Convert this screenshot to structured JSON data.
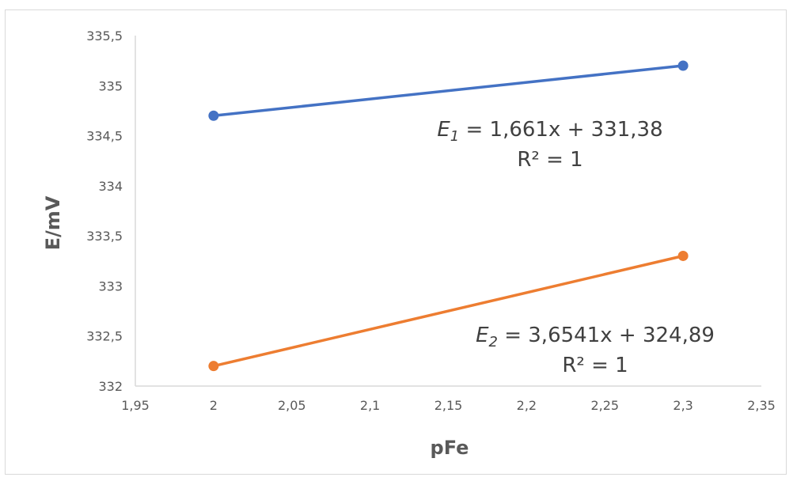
{
  "chart_data": {
    "type": "scatter",
    "title": "",
    "xlabel": "pFe",
    "ylabel": "E/mV",
    "xlim": [
      1.95,
      2.35
    ],
    "ylim": [
      332,
      335.5
    ],
    "x_ticks": [
      "1,95",
      "2",
      "2,05",
      "2,1",
      "2,15",
      "2,2",
      "2,25",
      "2,3",
      "2,35"
    ],
    "x_tick_values": [
      1.95,
      2.0,
      2.05,
      2.1,
      2.15,
      2.2,
      2.25,
      2.3,
      2.35
    ],
    "y_ticks": [
      "332",
      "332,5",
      "333",
      "333,5",
      "334",
      "334,5",
      "335",
      "335,5"
    ],
    "y_tick_values": [
      332,
      332.5,
      333,
      333.5,
      334,
      334.5,
      335,
      335.5
    ],
    "grid": false,
    "legend": "none",
    "series": [
      {
        "color": "#4472C4",
        "x": [
          2.0,
          2.3
        ],
        "y": [
          334.7,
          335.2
        ],
        "equation": {
          "symbol": "E",
          "subscript": "1",
          "text": " = 1,661x + 331,38",
          "r2": "R² = 1"
        }
      },
      {
        "color": "#ED7D31",
        "x": [
          2.0,
          2.3
        ],
        "y": [
          332.2,
          333.3
        ],
        "equation": {
          "symbol": "E",
          "subscript": "2",
          "text": " = 3,6541x + 324,89",
          "r2": "R² = 1"
        }
      }
    ]
  }
}
